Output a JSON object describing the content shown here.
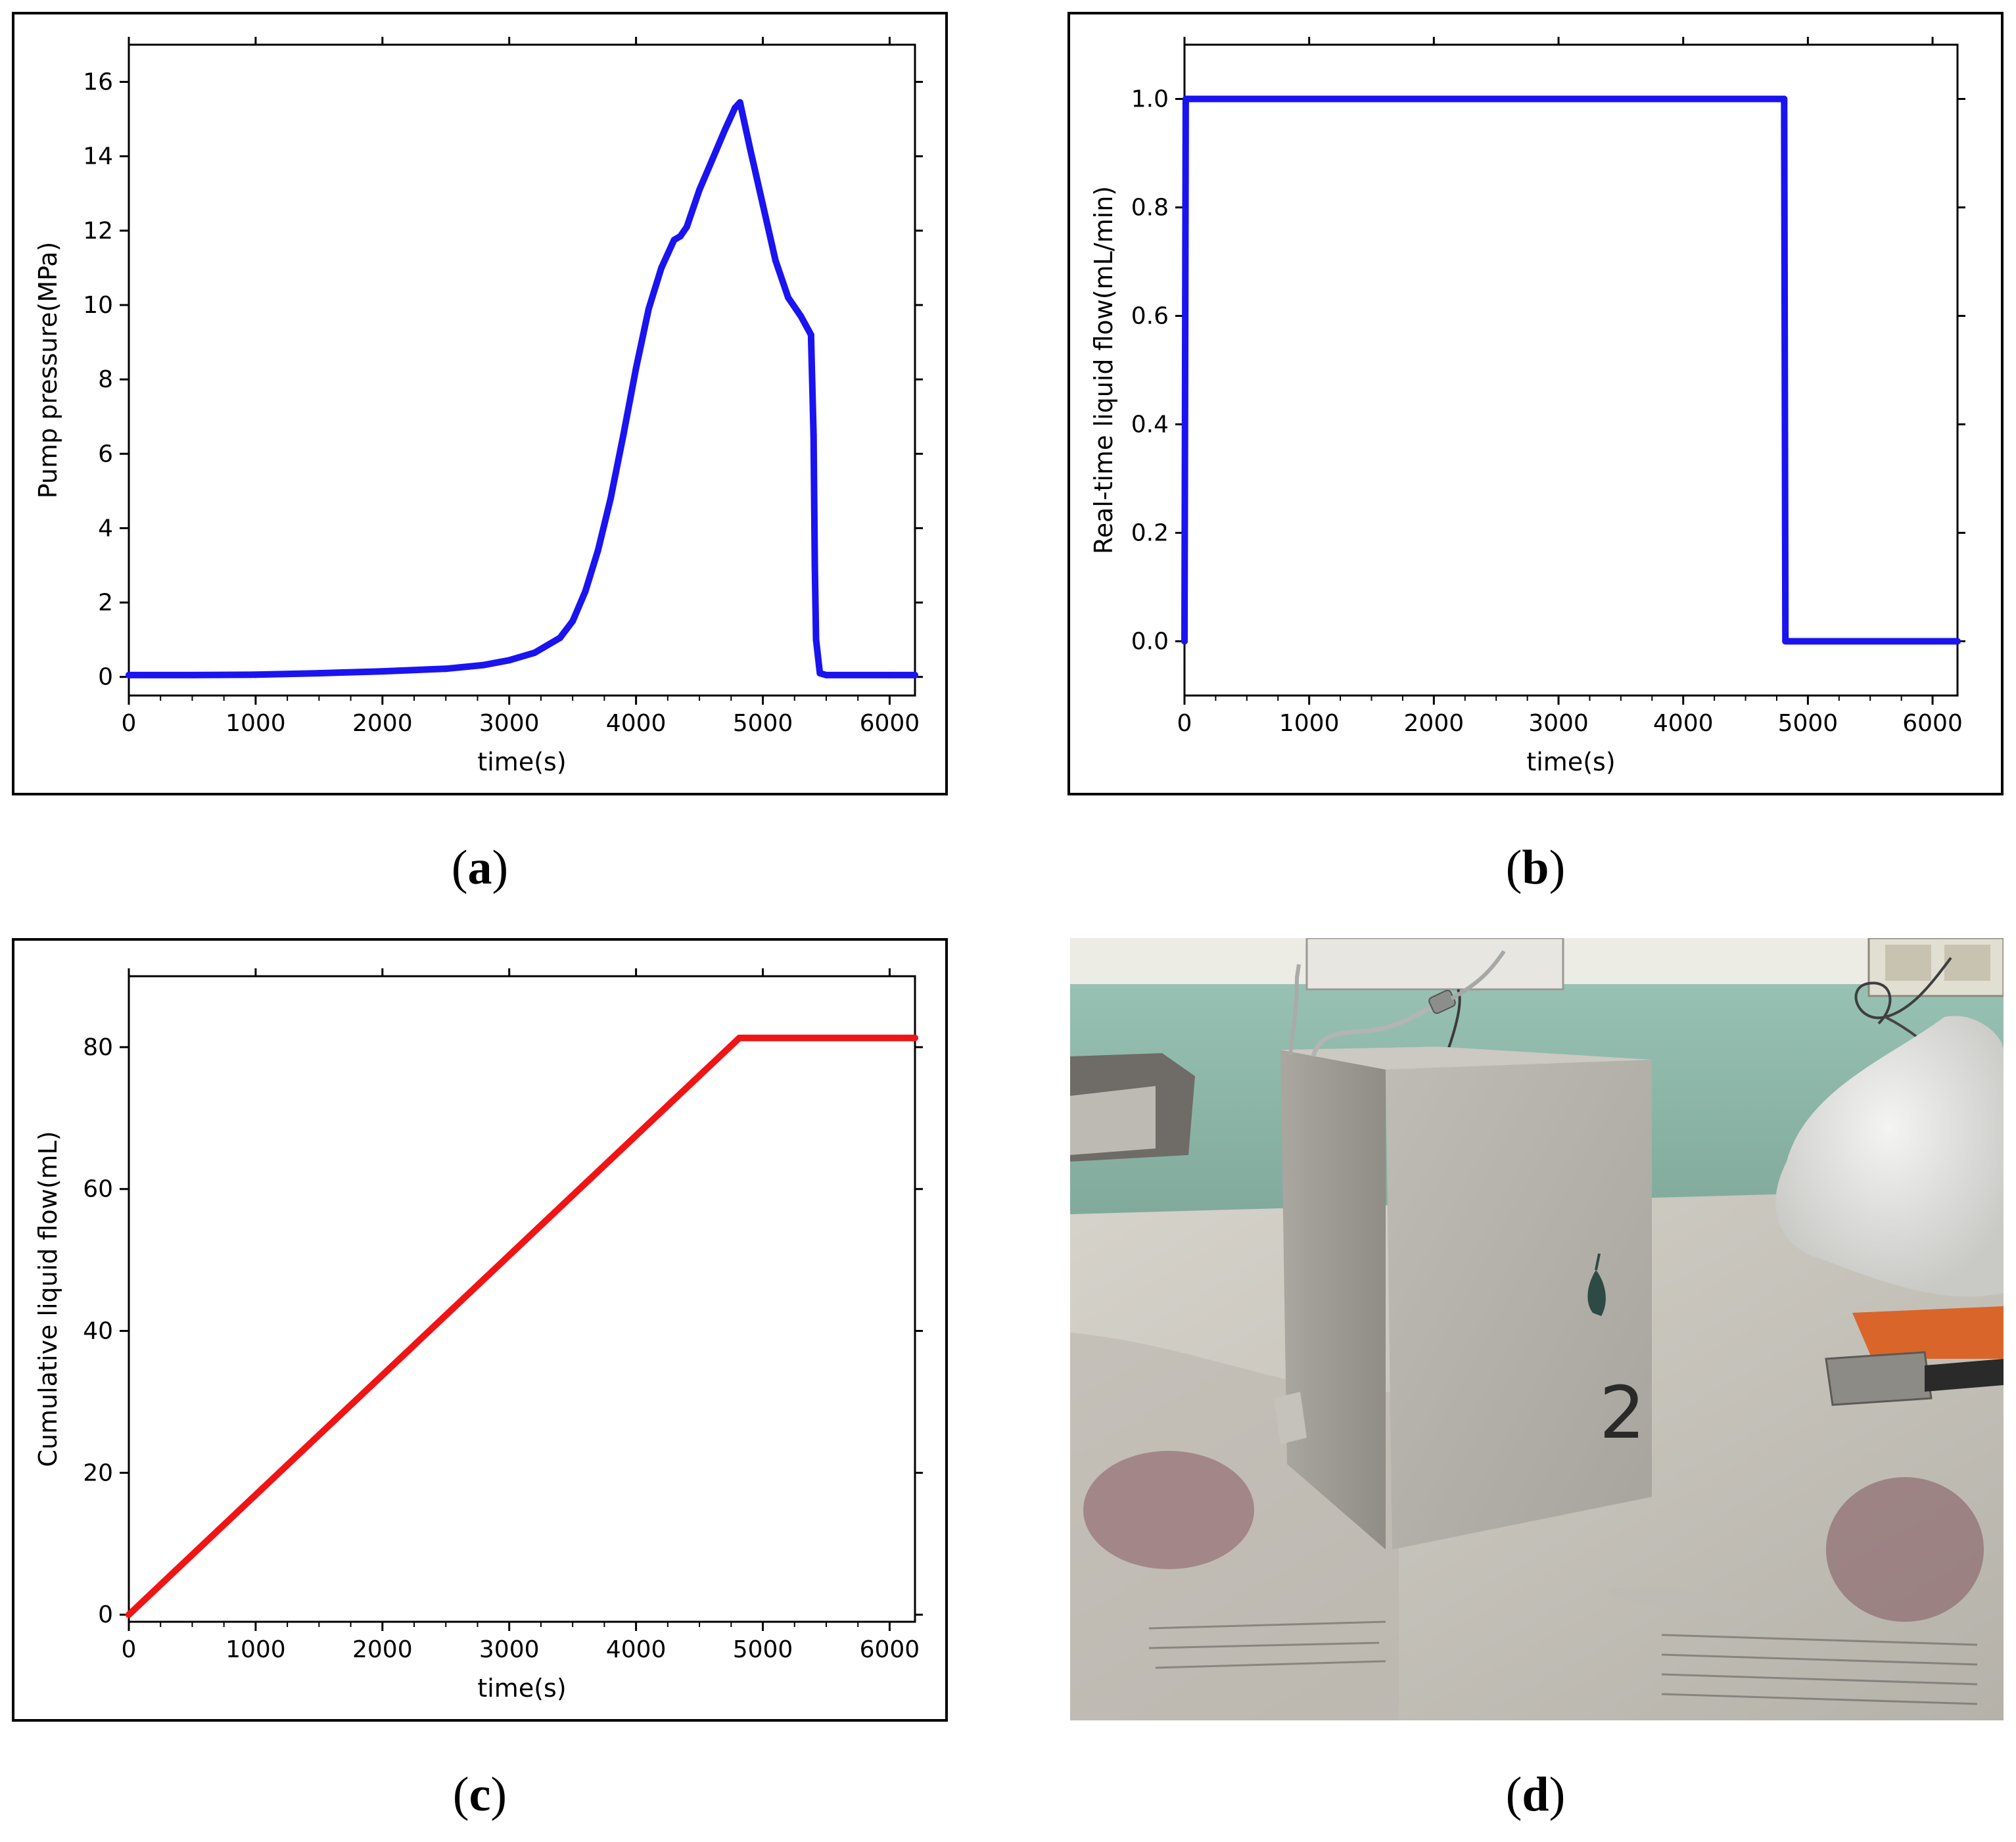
{
  "panels": [
    {
      "label": "a"
    },
    {
      "label": "b"
    },
    {
      "label": "c"
    },
    {
      "label": "d"
    }
  ],
  "photo": {
    "marking": "2",
    "colors": {
      "wall": "#8fb9aa",
      "wall_upper": "#ecebe4",
      "block": "#b3b1a9",
      "block_side": "#9e9c95",
      "newspaper": "#c9c6bd",
      "plastic": "#e4e4e2",
      "tool_orange": "#d9652a"
    }
  },
  "chart_data": [
    {
      "type": "line",
      "panel": "a",
      "xlabel": "time(s)",
      "ylabel": "Pump pressure(MPa)",
      "xlim": [
        0,
        6200
      ],
      "ylim": [
        -0.5,
        17
      ],
      "xticks": [
        0,
        1000,
        2000,
        3000,
        4000,
        5000,
        6000
      ],
      "yticks": [
        0,
        2,
        4,
        6,
        8,
        10,
        12,
        14,
        16
      ],
      "grid": false,
      "color": "#1a14f0",
      "series": [
        {
          "x": [
            0,
            500,
            1000,
            1500,
            2000,
            2500,
            2800,
            3000,
            3200,
            3400,
            3500,
            3600,
            3700,
            3800,
            3900,
            4000,
            4100,
            4200,
            4300,
            4350,
            4400,
            4500,
            4600,
            4700,
            4780,
            4820,
            4900,
            5000,
            5100,
            5200,
            5300,
            5380,
            5400,
            5410,
            5420,
            5450,
            5500,
            6000,
            6200
          ],
          "y": [
            0.05,
            0.05,
            0.06,
            0.1,
            0.15,
            0.22,
            0.32,
            0.45,
            0.65,
            1.05,
            1.5,
            2.3,
            3.4,
            4.8,
            6.5,
            8.3,
            9.9,
            11.0,
            11.75,
            11.85,
            12.1,
            13.1,
            13.9,
            14.7,
            15.3,
            15.45,
            14.2,
            12.7,
            11.2,
            10.2,
            9.7,
            9.2,
            6.5,
            3.0,
            1.0,
            0.1,
            0.05,
            0.05,
            0.05
          ]
        }
      ]
    },
    {
      "type": "line",
      "panel": "b",
      "xlabel": "time(s)",
      "ylabel": "Real-time liquid flow(mL/min)",
      "xlim": [
        0,
        6200
      ],
      "ylim": [
        -0.1,
        1.1
      ],
      "xticks": [
        0,
        1000,
        2000,
        3000,
        4000,
        5000,
        6000
      ],
      "yticks": [
        "0.0",
        "0.2",
        "0.4",
        "0.6",
        "0.8",
        "1.0"
      ],
      "grid": false,
      "color": "#1a14f0",
      "series": [
        {
          "x": [
            0,
            10,
            4810,
            4820,
            6200
          ],
          "y": [
            0.0,
            1.0,
            1.0,
            0.0,
            0.0
          ]
        }
      ]
    },
    {
      "type": "line",
      "panel": "c",
      "xlabel": "time(s)",
      "ylabel": "Cumulative liquid flow(mL)",
      "xlim": [
        0,
        6200
      ],
      "ylim": [
        -1,
        90
      ],
      "xticks": [
        0,
        1000,
        2000,
        3000,
        4000,
        5000,
        6000
      ],
      "yticks": [
        0,
        20,
        40,
        60,
        80
      ],
      "grid": false,
      "color": "#f01414",
      "series": [
        {
          "x": [
            0,
            4815,
            6200
          ],
          "y": [
            0,
            81.3,
            81.3
          ]
        }
      ]
    }
  ]
}
